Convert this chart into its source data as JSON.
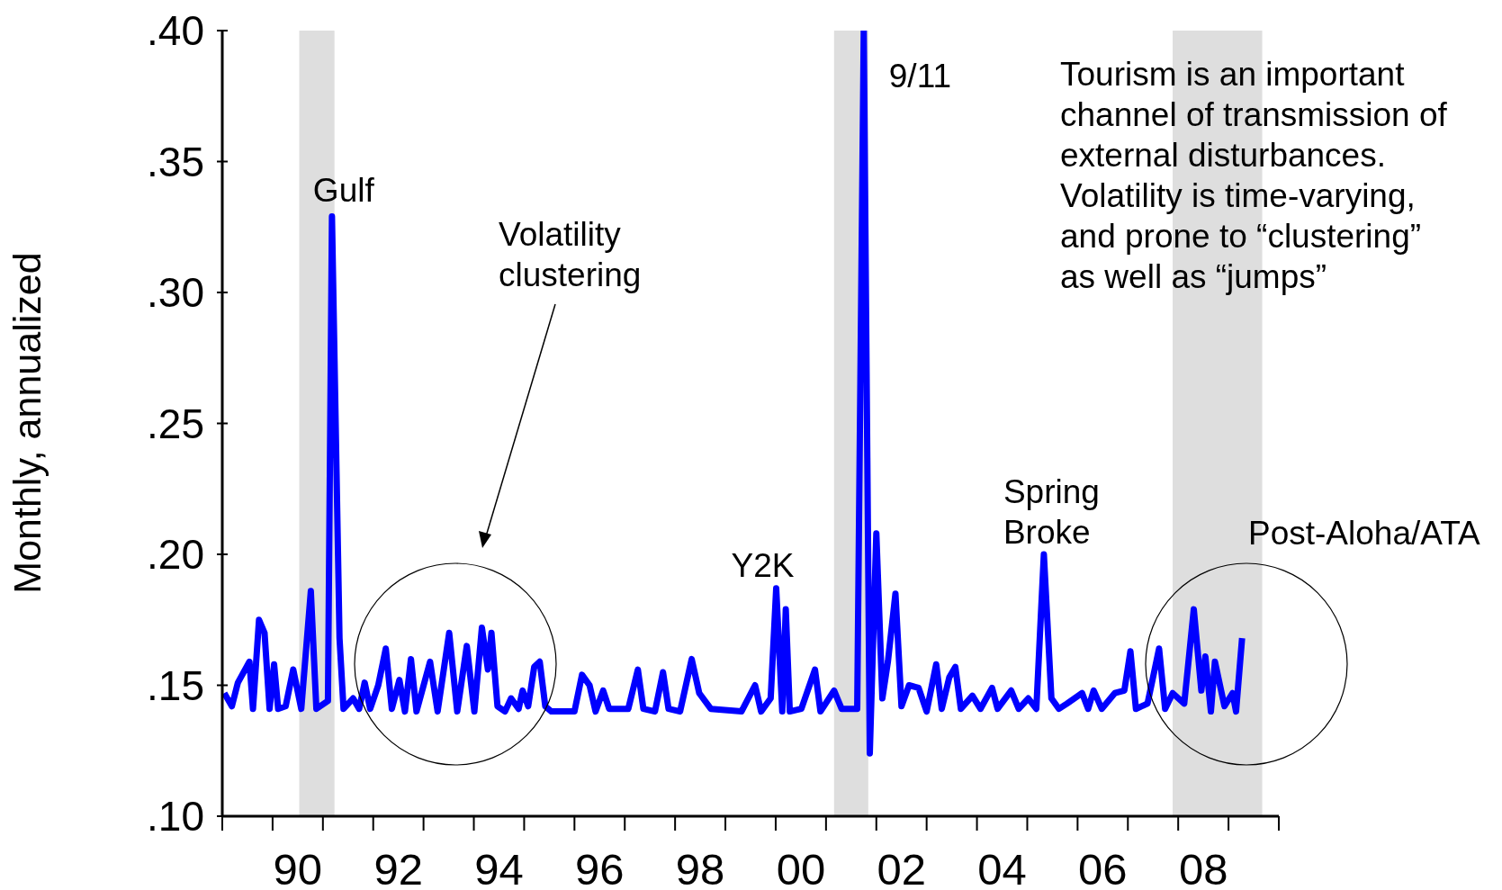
{
  "chart_data": {
    "type": "line",
    "ylabel": "Monthly, annualized",
    "x": [
      1988.54,
      1988.69,
      1988.81,
      1989.04,
      1989.11,
      1989.23,
      1989.34,
      1989.44,
      1989.53,
      1989.61,
      1989.76,
      1989.91,
      1990.07,
      1990.26,
      1990.37,
      1990.6,
      1990.68,
      1990.83,
      1990.91,
      1991.1,
      1991.22,
      1991.33,
      1991.44,
      1991.6,
      1991.75,
      1991.87,
      1992.02,
      1992.13,
      1992.25,
      1992.36,
      1992.63,
      1992.78,
      1993.01,
      1993.17,
      1993.36,
      1993.51,
      1993.66,
      1993.78,
      1993.85,
      1993.97,
      1994.12,
      1994.24,
      1994.39,
      1994.47,
      1994.58,
      1994.7,
      1994.81,
      1994.92,
      1995.04,
      1995.5,
      1995.65,
      1995.8,
      1995.92,
      1996.07,
      1996.19,
      1996.57,
      1996.76,
      1996.87,
      1997.1,
      1997.26,
      1997.37,
      1997.6,
      1997.83,
      1997.98,
      1998.21,
      1998.82,
      1999.09,
      1999.21,
      1999.4,
      1999.51,
      1999.63,
      1999.7,
      1999.78,
      2000.01,
      2000.28,
      2000.39,
      2000.66,
      2000.81,
      2001.12,
      2001.25,
      2001.37,
      2001.5,
      2001.62,
      2001.73,
      2001.88,
      2002.0,
      2002.15,
      2002.34,
      2002.5,
      2002.69,
      2002.8,
      2002.95,
      2003.07,
      2003.18,
      2003.41,
      2003.57,
      2003.8,
      2003.91,
      2004.18,
      2004.33,
      2004.52,
      2004.68,
      2004.83,
      2004.98,
      2005.13,
      2005.29,
      2005.59,
      2005.71,
      2005.82,
      2005.98,
      2006.24,
      2006.43,
      2006.55,
      2006.66,
      2006.89,
      2007.12,
      2007.24,
      2007.39,
      2007.62,
      2007.81,
      2007.96,
      2008.04,
      2008.15,
      2008.23,
      2008.42,
      2008.58,
      2008.65,
      2008.77
    ],
    "series": [
      {
        "color": "#0000ff",
        "values": [
          0.147,
          0.142,
          0.151,
          0.159,
          0.141,
          0.175,
          0.17,
          0.141,
          0.158,
          0.141,
          0.142,
          0.156,
          0.141,
          0.186,
          0.141,
          0.144,
          0.329,
          0.168,
          0.141,
          0.145,
          0.141,
          0.151,
          0.141,
          0.15,
          0.164,
          0.141,
          0.152,
          0.14,
          0.16,
          0.14,
          0.159,
          0.14,
          0.17,
          0.14,
          0.165,
          0.14,
          0.172,
          0.156,
          0.17,
          0.142,
          0.14,
          0.145,
          0.141,
          0.148,
          0.142,
          0.157,
          0.159,
          0.142,
          0.14,
          0.14,
          0.154,
          0.15,
          0.14,
          0.148,
          0.141,
          0.141,
          0.156,
          0.141,
          0.14,
          0.155,
          0.141,
          0.14,
          0.16,
          0.147,
          0.141,
          0.14,
          0.15,
          0.14,
          0.145,
          0.187,
          0.14,
          0.179,
          0.14,
          0.141,
          0.156,
          0.14,
          0.148,
          0.141,
          0.141,
          0.4,
          0.124,
          0.208,
          0.145,
          0.159,
          0.185,
          0.142,
          0.15,
          0.149,
          0.14,
          0.158,
          0.141,
          0.153,
          0.157,
          0.141,
          0.146,
          0.141,
          0.149,
          0.141,
          0.148,
          0.141,
          0.145,
          0.141,
          0.2,
          0.145,
          0.141,
          0.143,
          0.147,
          0.141,
          0.148,
          0.141,
          0.147,
          0.148,
          0.163,
          0.141,
          0.143,
          0.164,
          0.141,
          0.147,
          0.143,
          0.179,
          0.148,
          0.161,
          0.14,
          0.159,
          0.142,
          0.147,
          0.14,
          0.168
        ]
      }
    ],
    "xlim": [
      1988.5,
      2009.5
    ],
    "xticks": [
      {
        "value": 1988.5,
        "label": null
      },
      {
        "value": 1989.5,
        "label": null
      },
      {
        "value": 1990,
        "label": "90"
      },
      {
        "value": 1990.5,
        "label": null
      },
      {
        "value": 1991.5,
        "label": null
      },
      {
        "value": 1992,
        "label": "92"
      },
      {
        "value": 1992.5,
        "label": null
      },
      {
        "value": 1993.5,
        "label": null
      },
      {
        "value": 1994,
        "label": "94"
      },
      {
        "value": 1994.5,
        "label": null
      },
      {
        "value": 1995.5,
        "label": null
      },
      {
        "value": 1996,
        "label": "96"
      },
      {
        "value": 1996.5,
        "label": null
      },
      {
        "value": 1997.5,
        "label": null
      },
      {
        "value": 1998,
        "label": "98"
      },
      {
        "value": 1998.5,
        "label": null
      },
      {
        "value": 1999.5,
        "label": null
      },
      {
        "value": 2000,
        "label": "00"
      },
      {
        "value": 2000.5,
        "label": null
      },
      {
        "value": 2001.5,
        "label": null
      },
      {
        "value": 2002,
        "label": "02"
      },
      {
        "value": 2002.5,
        "label": null
      },
      {
        "value": 2003.5,
        "label": null
      },
      {
        "value": 2004,
        "label": "04"
      },
      {
        "value": 2004.5,
        "label": null
      },
      {
        "value": 2005.5,
        "label": null
      },
      {
        "value": 2006,
        "label": "06"
      },
      {
        "value": 2006.5,
        "label": null
      },
      {
        "value": 2007.5,
        "label": null
      },
      {
        "value": 2008,
        "label": "08"
      },
      {
        "value": 2008.5,
        "label": null
      },
      {
        "value": 2009.5,
        "label": null
      }
    ],
    "ylim": [
      0.1,
      0.4
    ],
    "yticks": [
      {
        "value": 0.1,
        "label": ".10"
      },
      {
        "value": 0.15,
        "label": ".15"
      },
      {
        "value": 0.2,
        "label": ".20"
      },
      {
        "value": 0.25,
        "label": ".25"
      },
      {
        "value": 0.3,
        "label": ".30"
      },
      {
        "value": 0.35,
        "label": ".35"
      },
      {
        "value": 0.4,
        "label": ".40"
      }
    ],
    "bands": [
      {
        "axis": "x",
        "from": 1990.03,
        "to": 1990.73,
        "color": "#dedede"
      },
      {
        "axis": "x",
        "from": 2000.66,
        "to": 2001.34,
        "color": "#dedede"
      },
      {
        "axis": "x",
        "from": 2007.39,
        "to": 2009.17,
        "color": "#dedede"
      }
    ],
    "grid": false,
    "legend": false,
    "marker": "none",
    "line_style": "solid",
    "annotations": [
      {
        "text": "Gulf",
        "x": 1990.68,
        "y": 0.329
      },
      {
        "text": "9/11",
        "x": 2001.25,
        "y": 0.4
      },
      {
        "text": "Y2K",
        "x": 1999.51,
        "y": 0.187
      },
      {
        "text": "Spring Broke",
        "x": 2004.83,
        "y": 0.2
      },
      "Volatility clustering",
      "Post-Aloha/ATA",
      "Tourism is an important channel of transmission of external disturbances. Volatility is time-varying, and prone to “clustering” as well as “jumps”"
    ]
  }
}
